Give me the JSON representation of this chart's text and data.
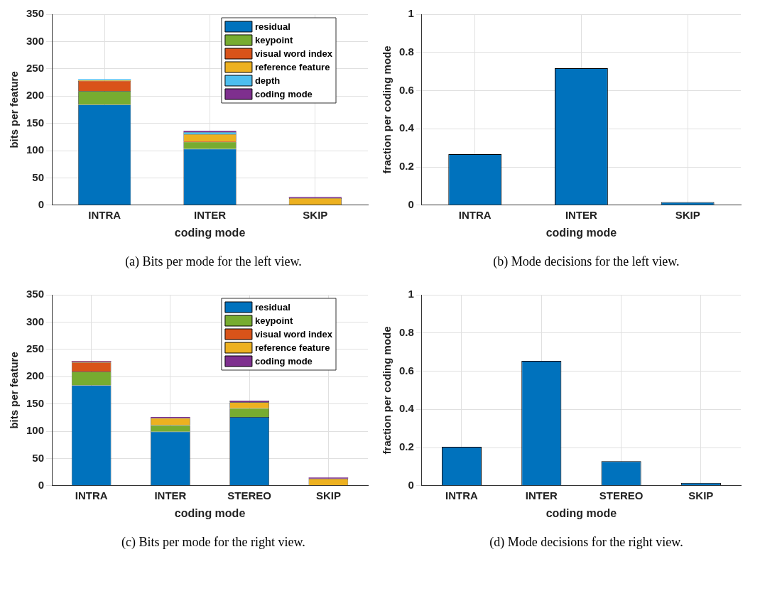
{
  "chart_data": [
    {
      "type": "bar",
      "stacked": true,
      "xlabel": "coding mode",
      "ylabel": "bits per feature",
      "categories": [
        "INTRA",
        "INTER",
        "SKIP"
      ],
      "ylim": [
        0,
        350
      ],
      "yticks": [
        0,
        50,
        100,
        150,
        200,
        250,
        300,
        350
      ],
      "grid": true,
      "legend": "top right",
      "annotations": [
        "(a) Bits per mode for the left view."
      ],
      "series": [
        {
          "name": "residual",
          "color": "#0072bd",
          "values": [
            184,
            103,
            0
          ]
        },
        {
          "name": "keypoint",
          "color": "#77ac30",
          "values": [
            25,
            13,
            0
          ]
        },
        {
          "name": "visual word index",
          "color": "#d95319",
          "values": [
            19,
            1,
            0
          ]
        },
        {
          "name": "reference feature",
          "color": "#edb120",
          "values": [
            1,
            13,
            13
          ]
        },
        {
          "name": "depth",
          "color": "#4dbeee",
          "values": [
            2,
            4,
            0
          ]
        },
        {
          "name": "coding mode",
          "color": "#7e2f8e",
          "values": [
            null,
            2,
            2
          ]
        }
      ]
    },
    {
      "type": "bar",
      "xlabel": "coding mode",
      "ylabel": "fraction per coding mode",
      "categories": [
        "INTRA",
        "INTER",
        "SKIP"
      ],
      "ylim": [
        0,
        1
      ],
      "yticks": [
        0,
        0.2,
        0.4,
        0.6,
        0.8,
        1
      ],
      "grid": true,
      "color": "#0072bd",
      "values": [
        0.267,
        0.717,
        0.016
      ],
      "annotations": [
        "(b) Mode decisions for the left view."
      ]
    },
    {
      "type": "bar",
      "stacked": true,
      "xlabel": "coding mode",
      "ylabel": "bits per feature",
      "categories": [
        "INTRA",
        "INTER",
        "STEREO",
        "SKIP"
      ],
      "ylim": [
        0,
        350
      ],
      "yticks": [
        0,
        50,
        100,
        150,
        200,
        250,
        300,
        350
      ],
      "grid": true,
      "legend": "top right",
      "annotations": [
        "(c) Bits per mode for the right view."
      ],
      "series": [
        {
          "name": "residual",
          "color": "#0072bd",
          "values": [
            184,
            99,
            126,
            0
          ]
        },
        {
          "name": "keypoint",
          "color": "#77ac30",
          "values": [
            25,
            12,
            16,
            0
          ]
        },
        {
          "name": "visual word index",
          "color": "#d95319",
          "values": [
            17,
            0,
            0,
            0
          ]
        },
        {
          "name": "reference feature",
          "color": "#edb120",
          "values": [
            1,
            13,
            11,
            13
          ]
        },
        {
          "name": "coding mode",
          "color": "#7e2f8e",
          "values": [
            2,
            2,
            3,
            2
          ]
        }
      ]
    },
    {
      "type": "bar",
      "xlabel": "coding mode",
      "ylabel": "fraction per coding mode",
      "categories": [
        "INTRA",
        "INTER",
        "STEREO",
        "SKIP"
      ],
      "ylim": [
        0,
        1
      ],
      "yticks": [
        0,
        0.2,
        0.4,
        0.6,
        0.8,
        1
      ],
      "grid": true,
      "color": "#0072bd",
      "values": [
        0.204,
        0.654,
        0.129,
        0.015
      ],
      "annotations": [
        "(d) Mode decisions for the right view."
      ]
    }
  ]
}
